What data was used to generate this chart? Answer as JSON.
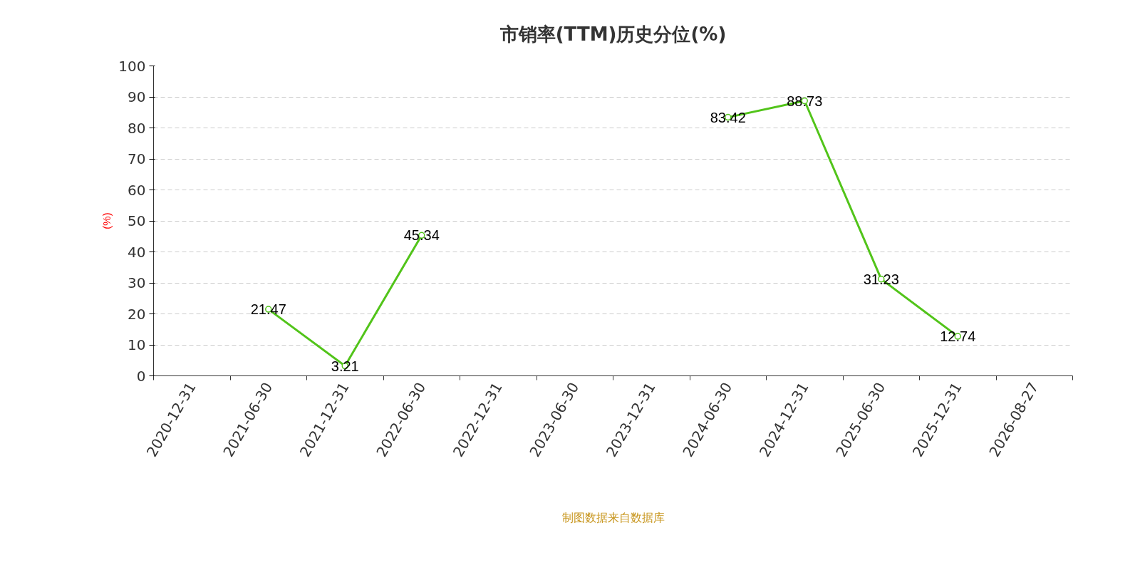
{
  "chart_data": {
    "type": "line",
    "title": "市销率(TTM)历史分位(%)",
    "ylabel": "(%)",
    "categories": [
      "2020-12-31",
      "2021-06-30",
      "2021-12-31",
      "2022-06-30",
      "2022-12-31",
      "2023-06-30",
      "2023-12-31",
      "2024-06-30",
      "2024-12-31",
      "2025-06-30",
      "2025-12-31",
      "2026-08-27"
    ],
    "series": [
      {
        "color": "#52c41a",
        "values": [
          null,
          21.47,
          3.21,
          45.34,
          null,
          null,
          null,
          83.42,
          88.73,
          31.23,
          12.74,
          null
        ]
      }
    ],
    "ylim": [
      0,
      100
    ],
    "yticks": [
      0,
      10,
      20,
      30,
      40,
      50,
      60,
      70,
      80,
      90,
      100
    ],
    "grid": "y",
    "marker": "circle",
    "line_style": "solid",
    "data_labels": true,
    "annotations": [
      "制图数据来自数据库"
    ]
  }
}
